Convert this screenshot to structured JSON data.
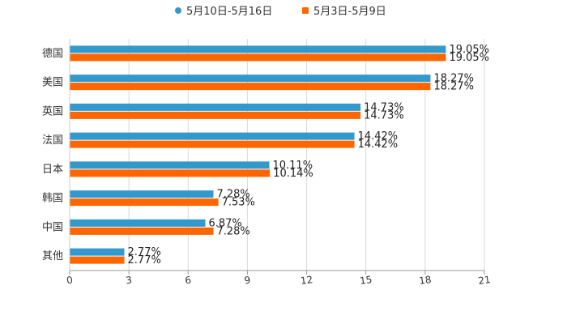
{
  "chart_data": {
    "type": "bar",
    "orientation": "horizontal",
    "categories": [
      "德国",
      "美国",
      "英国",
      "法国",
      "日本",
      "韩国",
      "中国",
      "其他"
    ],
    "series": [
      {
        "name": "5月10日-5月16日",
        "color": "#3399cc",
        "values": [
          19.05,
          18.27,
          14.73,
          14.42,
          10.11,
          7.28,
          6.87,
          2.77
        ],
        "labels": [
          "19.05%",
          "18.27%",
          "14.73%",
          "14.42%",
          "10.11%",
          "7.28%",
          "6.87%",
          "2.77%"
        ]
      },
      {
        "name": "5月3日-5月9日",
        "color": "#ff6600",
        "values": [
          19.05,
          18.27,
          14.73,
          14.42,
          10.14,
          7.53,
          7.28,
          2.77
        ],
        "labels": [
          "19.05%",
          "18.27%",
          "14.73%",
          "14.42%",
          "10.14%",
          "7.53%",
          "7.28%",
          "2.77%"
        ]
      }
    ],
    "xlim": [
      0,
      21
    ],
    "xticks": [
      "0",
      "3",
      "6",
      "9",
      "12",
      "15",
      "18",
      "21"
    ],
    "xtick_values": [
      0,
      3,
      6,
      9,
      12,
      15,
      18,
      21
    ],
    "grid": true,
    "legend": "top-center"
  }
}
